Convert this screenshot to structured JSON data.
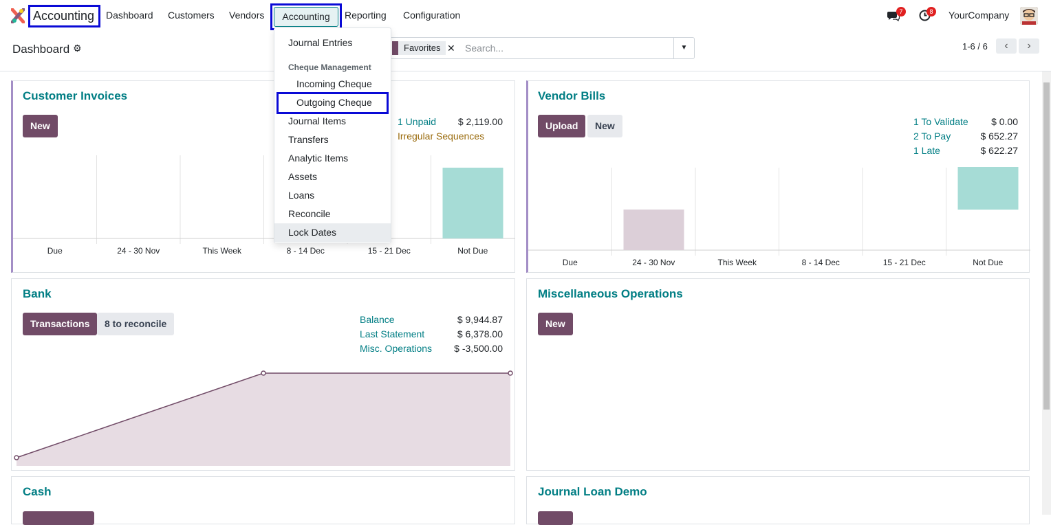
{
  "topbar": {
    "app_name": "Accounting",
    "menu": [
      "Dashboard",
      "Customers",
      "Vendors",
      "Accounting",
      "Reporting",
      "Configuration"
    ],
    "messages_count": "7",
    "activities_count": "8",
    "company": "YourCompany"
  },
  "control": {
    "breadcrumb": "Dashboard",
    "facet": "Favorites",
    "search_placeholder": "Search...",
    "pager": "1-6 / 6"
  },
  "accounting_menu": {
    "items": [
      "Journal Entries",
      "Incoming Cheque",
      "Outgoing Cheque",
      "Journal Items",
      "Transfers",
      "Analytic Items",
      "Assets",
      "Loans",
      "Reconcile",
      "Lock Dates"
    ],
    "section_header": "Cheque Management"
  },
  "customer_invoices": {
    "title": "Customer Invoices",
    "new_label": "New",
    "stats": [
      {
        "label": "1 Unpaid",
        "value": "$ 2,119.00"
      },
      {
        "label": "Irregular Sequences",
        "value": ""
      }
    ],
    "chart_data": {
      "type": "bar",
      "categories": [
        "Due",
        "24 - 30 Nov",
        "This Week",
        "8 - 14 Dec",
        "15 - 21 Dec",
        "Not Due"
      ],
      "values": [
        0,
        0,
        0,
        0,
        0,
        2119
      ],
      "colors": [
        "#a6dcd6"
      ]
    }
  },
  "vendor_bills": {
    "title": "Vendor Bills",
    "upload_label": "Upload",
    "new_label": "New",
    "stats": [
      {
        "label": "1 To Validate",
        "value": "$ 0.00"
      },
      {
        "label": "2 To Pay",
        "value": "$ 652.27"
      },
      {
        "label": "1 Late",
        "value": "$ 622.27"
      }
    ],
    "chart_data": {
      "type": "bar",
      "categories": [
        "Due",
        "24 - 30 Nov",
        "This Week",
        "8 - 14 Dec",
        "15 - 21 Dec",
        "Not Due"
      ],
      "values": [
        0,
        622.27,
        0,
        0,
        0,
        652.27
      ],
      "colors": [
        "#dccfd8",
        "#a6dcd6"
      ]
    }
  },
  "bank": {
    "title": "Bank",
    "transactions_label": "Transactions",
    "reconcile_label": "8 to reconcile",
    "stats": [
      {
        "label": "Balance",
        "value": "$ 9,944.87"
      },
      {
        "label": "Last Statement",
        "value": "$ 6,378.00"
      },
      {
        "label": "Misc. Operations",
        "value": "$ -3,500.00"
      }
    ],
    "chart_data": {
      "type": "area",
      "x": [
        0,
        1,
        2
      ],
      "y": [
        0,
        9944.87,
        9944.87
      ],
      "colors": [
        "#714b67",
        "#e7dce3"
      ]
    }
  },
  "misc_operations": {
    "title": "Miscellaneous Operations",
    "new_label": "New"
  },
  "cash": {
    "title": "Cash"
  },
  "journal_loan_demo": {
    "title": "Journal Loan Demo"
  }
}
